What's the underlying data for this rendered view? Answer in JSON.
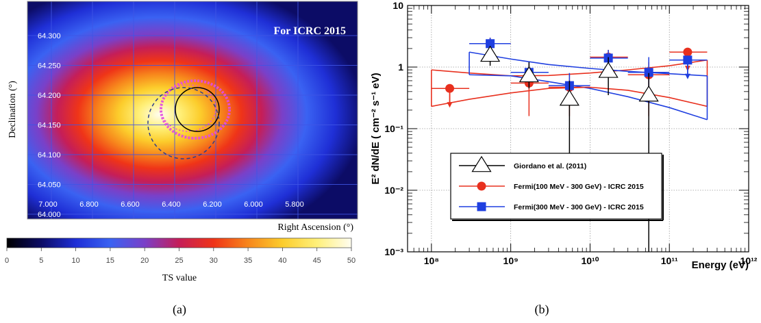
{
  "panel_a": {
    "banner": "For ICRC 2015",
    "ylabel": "Declination (°)",
    "xlabel": "Right Ascension (°)",
    "colorbar_label": "TS value",
    "caption": "(a)",
    "dec_ticks": [
      "64.300",
      "64.250",
      "64.200",
      "64.150",
      "64.100",
      "64.050",
      "64.000"
    ],
    "ra_ticks": [
      "7.000",
      "6.800",
      "6.600",
      "6.400",
      "6.200",
      "6.000",
      "5.800"
    ],
    "colorbar_ticks": [
      "0",
      "5",
      "10",
      "15",
      "20",
      "25",
      "30",
      "35",
      "40",
      "45",
      "50"
    ],
    "colors": {
      "colormap": [
        "#000000",
        "#0c0c66",
        "#1f2fd6",
        "#3a62f2",
        "#7a40c8",
        "#c51e58",
        "#ef3418",
        "#f7861c",
        "#fccd2c",
        "#fff07a",
        "#fffdf0"
      ],
      "grid": "#3f55e6",
      "contour": "#e24de0",
      "circle_solid": "#000000",
      "circle_dashed": "#2d3e8c"
    }
  },
  "chart_data": {
    "type": "scatter",
    "title": "",
    "caption": "(b)",
    "xlabel": "Energy (eV)",
    "ylabel": "E² dN/dE ( cm⁻² s⁻¹ eV)",
    "xscale": "log",
    "yscale": "log",
    "xlim": [
      50000000.0,
      1000000000000.0
    ],
    "ylim": [
      0.001,
      10
    ],
    "x_tick_labels": [
      "10⁸",
      "10⁹",
      "10¹⁰",
      "10¹¹",
      "10¹²"
    ],
    "y_tick_labels": [
      "10⁻³",
      "10⁻²",
      "10⁻¹",
      "1",
      "10"
    ],
    "grid": true,
    "legend_placement": "lower-left",
    "series": [
      {
        "name": "Giordano et al. (2011)",
        "marker": "open-triangle",
        "color": "#000000",
        "points": [
          {
            "x": 550000000.0,
            "y": 1.55,
            "ylo": 1.05,
            "yhi": 2.0
          },
          {
            "x": 1700000000.0,
            "y": 0.72,
            "ylo": 0.45,
            "yhi": 1.2
          },
          {
            "x": 5500000000.0,
            "y": 0.3,
            "ylo": 0.04,
            "yhi": 0.6
          },
          {
            "x": 17000000000.0,
            "y": 0.85,
            "ylo": 0.35,
            "yhi": 1.45
          },
          {
            "x": 55000000000.0,
            "y": 0.35,
            "ylo": 0.001,
            "yhi": 0.8
          }
        ]
      },
      {
        "name": "Fermi(100 MeV - 300 GeV) - ICRC 2015",
        "marker": "filled-circle",
        "color": "#e8301e",
        "points": [
          {
            "x": 170000000.0,
            "y": 0.45,
            "xlo": 100000000.0,
            "xhi": 300000000.0,
            "upper_limit": true
          },
          {
            "x": 550000000.0,
            "y": 2.4,
            "xlo": 300000000.0,
            "xhi": 1000000000.0,
            "ylo": 1.55,
            "yhi": 3.0
          },
          {
            "x": 1700000000.0,
            "y": 0.55,
            "xlo": 1000000000.0,
            "xhi": 3000000000.0,
            "ylo": 0.16,
            "yhi": 1.05
          },
          {
            "x": 5500000000.0,
            "y": 0.47,
            "xlo": 3000000000.0,
            "xhi": 10000000000.0,
            "ylo": 0.16,
            "yhi": 0.78
          },
          {
            "x": 17000000000.0,
            "y": 1.45,
            "xlo": 10000000000.0,
            "xhi": 30000000000.0,
            "ylo": 1.0,
            "yhi": 1.9
          },
          {
            "x": 55000000000.0,
            "y": 0.75,
            "xlo": 30000000000.0,
            "xhi": 100000000000.0,
            "ylo": 0.16,
            "yhi": 1.2
          },
          {
            "x": 170000000000.0,
            "y": 1.75,
            "xlo": 100000000000.0,
            "xhi": 300000000000.0,
            "upper_limit": true
          }
        ],
        "band": {
          "x": [
            100000000.0,
            300000000.0,
            1000000000.0,
            3000000000.0,
            10000000000.0,
            30000000000.0,
            100000000000.0,
            300000000000.0
          ],
          "upper": [
            0.9,
            0.8,
            0.72,
            0.73,
            0.8,
            0.9,
            1.05,
            1.3
          ],
          "lower": [
            0.23,
            0.3,
            0.38,
            0.45,
            0.47,
            0.42,
            0.32,
            0.23
          ]
        }
      },
      {
        "name": "Fermi(300 MeV - 300 GeV) - ICRC 2015",
        "marker": "filled-square",
        "color": "#1f3fe0",
        "points": [
          {
            "x": 550000000.0,
            "y": 2.4,
            "xlo": 300000000.0,
            "xhi": 1000000000.0,
            "ylo": 1.75,
            "yhi": 3.0
          },
          {
            "x": 1700000000.0,
            "y": 0.82,
            "xlo": 1000000000.0,
            "xhi": 3000000000.0,
            "ylo": 0.5,
            "yhi": 1.2
          },
          {
            "x": 5500000000.0,
            "y": 0.5,
            "xlo": 3000000000.0,
            "xhi": 10000000000.0,
            "ylo": 0.25,
            "yhi": 0.8
          },
          {
            "x": 17000000000.0,
            "y": 1.4,
            "xlo": 10000000000.0,
            "xhi": 30000000000.0,
            "ylo": 0.95,
            "yhi": 1.9
          },
          {
            "x": 55000000000.0,
            "y": 0.82,
            "xlo": 30000000000.0,
            "xhi": 100000000000.0,
            "ylo": 0.3,
            "yhi": 1.45
          },
          {
            "x": 170000000000.0,
            "y": 1.3,
            "xlo": 100000000000.0,
            "xhi": 300000000000.0,
            "upper_limit": true
          }
        ],
        "band": {
          "x": [
            300000000.0,
            1000000000.0,
            3000000000.0,
            10000000000.0,
            30000000000.0,
            100000000000.0,
            300000000000.0
          ],
          "upper": [
            1.75,
            1.35,
            1.1,
            0.95,
            0.85,
            0.78,
            0.72
          ],
          "lower": [
            0.75,
            0.72,
            0.58,
            0.45,
            0.33,
            0.22,
            0.14
          ]
        }
      }
    ]
  }
}
